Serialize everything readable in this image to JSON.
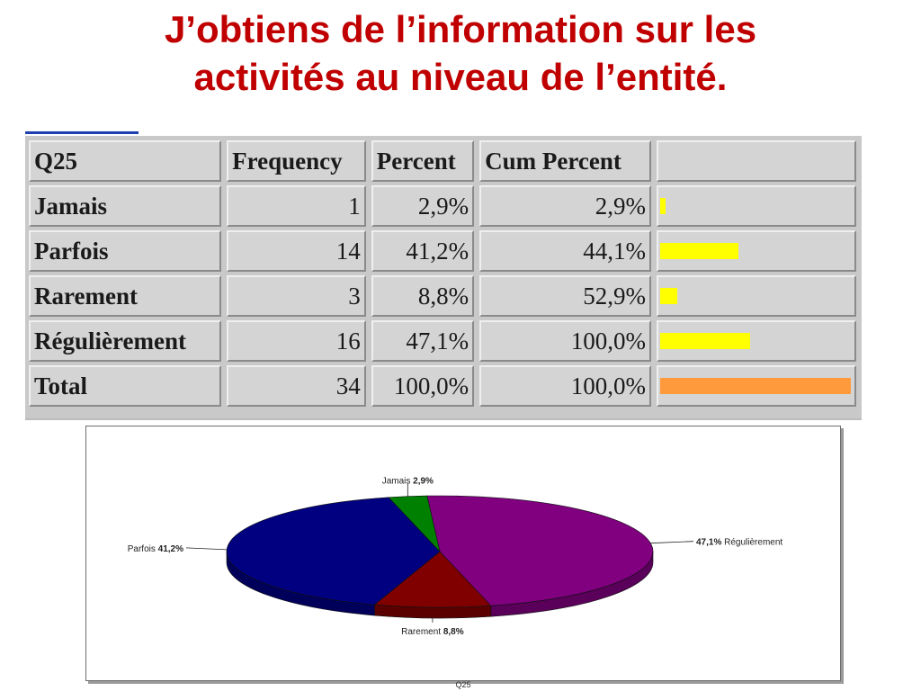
{
  "slide": {
    "title_line1": "J’obtiens de l’information sur les",
    "title_line2": "activités  au niveau de l’entité."
  },
  "table": {
    "headers": [
      "Q25",
      "Frequency",
      "Percent",
      "Cum Percent",
      ""
    ],
    "rows": [
      {
        "label": "Jamais",
        "frequency": "1",
        "percent": "2,9%",
        "cum_percent": "2,9%",
        "bar_fraction": 0.029
      },
      {
        "label": "Parfois",
        "frequency": "14",
        "percent": "41,2%",
        "cum_percent": "44,1%",
        "bar_fraction": 0.412
      },
      {
        "label": "Rarement",
        "frequency": "3",
        "percent": "8,8%",
        "cum_percent": "52,9%",
        "bar_fraction": 0.088
      },
      {
        "label": "Régulièrement",
        "frequency": "16",
        "percent": "47,1%",
        "cum_percent": "100,0%",
        "bar_fraction": 0.471
      }
    ],
    "total": {
      "label": "Total",
      "frequency": "34",
      "percent": "100,0%",
      "cum_percent": "100,0%",
      "bar_fraction": 1.0
    },
    "colors": {
      "bar": "#ffff00",
      "total_bar": "#ff9a3c"
    }
  },
  "chart_data": {
    "type": "pie",
    "title": "",
    "caption": "Q25",
    "slices": [
      {
        "label": "Régulièrement",
        "value": 47.1,
        "value_label": "47,1%",
        "color": "#800080"
      },
      {
        "label": "Rarement",
        "value": 8.8,
        "value_label": "8,8%",
        "color": "#800000"
      },
      {
        "label": "Parfois",
        "value": 41.2,
        "value_label": "41,2%",
        "color": "#000080"
      },
      {
        "label": "Jamais",
        "value": 2.9,
        "value_label": "2,9%",
        "color": "#008000"
      }
    ]
  }
}
